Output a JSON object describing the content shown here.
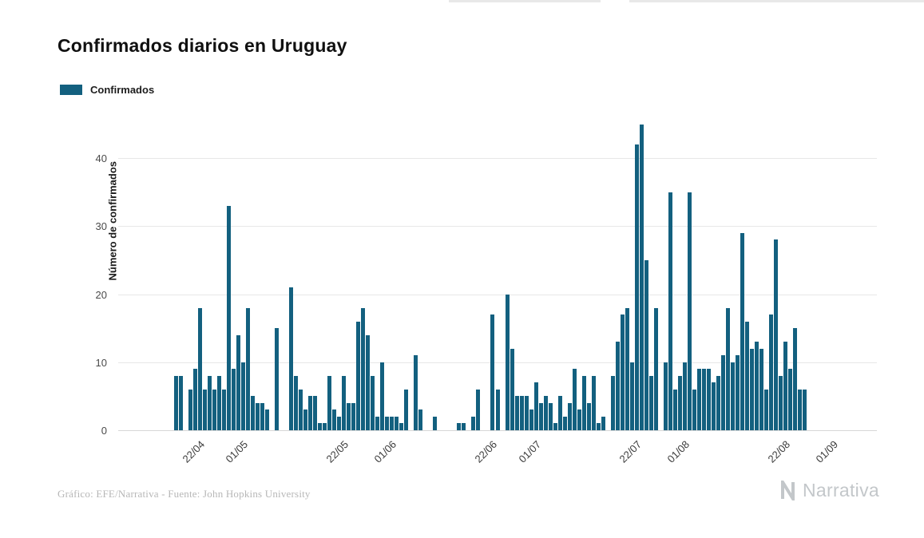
{
  "title": "Confirmados diarios en Uruguay",
  "legend": {
    "label": "Confirmados",
    "color": "#13607f"
  },
  "footer": {
    "credit": "Gráfico: EFE/Narrativa - Fuente: John Hopkins University",
    "brand": "Narrativa"
  },
  "chart_data": {
    "type": "bar",
    "title": "Confirmados diarios en Uruguay",
    "xlabel": "",
    "ylabel": "Número de confirmados",
    "series_name": "Confirmados",
    "bar_color": "#13607f",
    "grid": true,
    "legend_position": "top-left",
    "ylim": [
      0,
      46
    ],
    "y_ticks": [
      0,
      10,
      20,
      30,
      40
    ],
    "x_ticks": [
      "22/04",
      "01/05",
      "22/05",
      "01/06",
      "22/06",
      "01/07",
      "22/07",
      "01/08",
      "22/08",
      "01/09"
    ],
    "x": [
      "17/04",
      "18/04",
      "19/04",
      "20/04",
      "21/04",
      "22/04",
      "23/04",
      "24/04",
      "25/04",
      "26/04",
      "27/04",
      "28/04",
      "29/04",
      "30/04",
      "01/05",
      "02/05",
      "03/05",
      "04/05",
      "05/05",
      "06/05",
      "07/05",
      "08/05",
      "09/05",
      "10/05",
      "11/05",
      "12/05",
      "13/05",
      "14/05",
      "15/05",
      "16/05",
      "17/05",
      "18/05",
      "19/05",
      "20/05",
      "21/05",
      "22/05",
      "23/05",
      "24/05",
      "25/05",
      "26/05",
      "27/05",
      "28/05",
      "29/05",
      "30/05",
      "31/05",
      "01/06",
      "02/06",
      "03/06",
      "04/06",
      "05/06",
      "06/06",
      "07/06",
      "08/06",
      "09/06",
      "10/06",
      "11/06",
      "12/06",
      "13/06",
      "14/06",
      "15/06",
      "16/06",
      "17/06",
      "18/06",
      "19/06",
      "20/06",
      "21/06",
      "22/06",
      "23/06",
      "24/06",
      "25/06",
      "26/06",
      "27/06",
      "28/06",
      "29/06",
      "30/06",
      "01/07",
      "02/07",
      "03/07",
      "04/07",
      "05/07",
      "06/07",
      "07/07",
      "08/07",
      "09/07",
      "10/07",
      "11/07",
      "12/07",
      "13/07",
      "14/07",
      "15/07",
      "16/07",
      "17/07",
      "18/07",
      "19/07",
      "20/07",
      "21/07",
      "22/07",
      "23/07",
      "24/07",
      "25/07",
      "26/07",
      "27/07",
      "28/07",
      "29/07",
      "30/07",
      "31/07",
      "01/08",
      "02/08",
      "03/08",
      "04/08",
      "05/08",
      "06/08",
      "07/08",
      "08/08",
      "09/08",
      "10/08",
      "11/08",
      "12/08",
      "13/08",
      "14/08",
      "15/08",
      "16/08",
      "17/08",
      "18/08",
      "19/08",
      "20/08",
      "21/08",
      "22/08",
      "23/08",
      "24/08",
      "25/08",
      "26/08"
    ],
    "values": [
      8,
      8,
      0,
      6,
      9,
      18,
      6,
      8,
      6,
      8,
      6,
      33,
      9,
      14,
      10,
      18,
      5,
      4,
      4,
      3,
      0,
      15,
      0,
      0,
      21,
      8,
      6,
      3,
      5,
      5,
      1,
      1,
      8,
      3,
      2,
      8,
      4,
      4,
      16,
      18,
      14,
      8,
      2,
      10,
      2,
      2,
      2,
      1,
      6,
      0,
      11,
      3,
      0,
      0,
      2,
      0,
      0,
      0,
      0,
      1,
      1,
      0,
      2,
      6,
      0,
      0,
      17,
      6,
      0,
      20,
      12,
      5,
      5,
      5,
      3,
      7,
      4,
      5,
      4,
      1,
      5,
      2,
      4,
      9,
      3,
      8,
      4,
      8,
      1,
      2,
      0,
      8,
      13,
      17,
      18,
      10,
      42,
      45,
      25,
      8,
      18,
      0,
      10,
      35,
      6,
      8,
      10,
      35,
      6,
      9,
      9,
      9,
      7,
      8,
      11,
      18,
      10,
      11,
      29,
      16,
      12,
      13,
      12,
      6,
      17,
      28,
      8,
      13,
      9,
      15,
      6,
      6
    ]
  }
}
